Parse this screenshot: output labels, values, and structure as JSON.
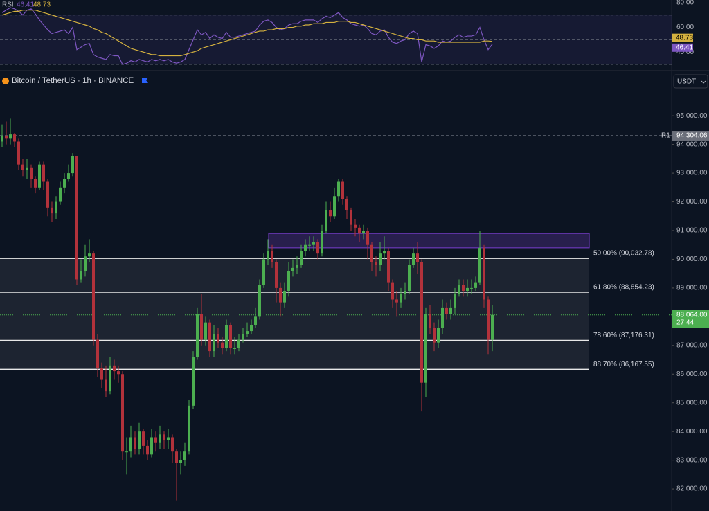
{
  "chart_data": [
    {
      "type": "candlestick",
      "title": "Bitcoin / TetherUS · 1h · BINANCE",
      "currency": "USDT",
      "up_color": "#4caf50",
      "down_color": "#b2323b",
      "open": [
        94100,
        94300,
        94200,
        94350,
        94100,
        93300,
        93100,
        93200,
        92800,
        92500,
        93300,
        92700,
        91800,
        91600,
        92000,
        92500,
        92800,
        93000,
        93600,
        89300,
        89600,
        90100,
        90200,
        87200,
        86200,
        85800,
        85400,
        86300,
        86100,
        86000,
        83300,
        83300,
        83800,
        83400,
        84000,
        83500,
        83200,
        83800,
        83600,
        83900,
        83700,
        83800,
        83300,
        82900,
        83000,
        83300,
        84900,
        86600,
        88100,
        87200,
        87800,
        86800,
        87400,
        87100,
        86900,
        87700,
        86900,
        86900,
        87200,
        87400,
        87500,
        87700,
        88000,
        89100,
        90000,
        90300,
        89900,
        89000,
        88500,
        88900,
        89600,
        89700,
        89800,
        90300,
        90500,
        90500,
        90600,
        90200,
        91000,
        91700,
        91500,
        92200,
        92700,
        92100,
        91700,
        91200,
        91100,
        90900,
        91000,
        90500,
        89900,
        89800,
        90200,
        90300,
        89200,
        88600,
        88500,
        88800,
        88900,
        89800,
        90200,
        89900,
        85700,
        88100,
        87600,
        87100,
        87600,
        88300,
        88100,
        88300,
        88800,
        89100,
        88900,
        89000,
        89000,
        89200,
        90400,
        88600,
        87200
      ],
      "high": [
        94700,
        94800,
        94900,
        94400,
        94200,
        93500,
        93500,
        93300,
        92900,
        93400,
        93400,
        92800,
        92000,
        92200,
        92700,
        93000,
        93300,
        93700,
        93600,
        90000,
        90500,
        90700,
        90300,
        87400,
        86400,
        86300,
        86600,
        86500,
        86300,
        86100,
        83800,
        84200,
        84000,
        84300,
        84100,
        83700,
        84100,
        84000,
        84200,
        84000,
        84100,
        83900,
        83400,
        83300,
        83600,
        85100,
        86800,
        88300,
        88800,
        88000,
        87900,
        87700,
        87600,
        87300,
        87900,
        87800,
        87300,
        87400,
        87600,
        87800,
        87900,
        88300,
        89300,
        90200,
        90700,
        90500,
        90000,
        89200,
        89200,
        89900,
        90000,
        90100,
        90500,
        90700,
        90800,
        90800,
        90700,
        91200,
        92000,
        92000,
        92500,
        92800,
        92800,
        92200,
        91800,
        91400,
        91200,
        91200,
        91100,
        90600,
        90100,
        90600,
        90800,
        90400,
        89300,
        88900,
        89000,
        89200,
        90000,
        90400,
        90600,
        90000,
        88300,
        88400,
        87800,
        87900,
        88600,
        88500,
        88600,
        89000,
        89300,
        89300,
        89300,
        89300,
        89400,
        91000,
        90500,
        88700,
        88400
      ],
      "low": [
        93900,
        94000,
        94000,
        93900,
        93100,
        92900,
        92800,
        92500,
        92300,
        92400,
        92400,
        91500,
        91300,
        91400,
        91900,
        92300,
        92700,
        92900,
        89100,
        89200,
        89400,
        89900,
        87000,
        85900,
        85500,
        85200,
        85300,
        85800,
        85700,
        83000,
        82500,
        83100,
        83200,
        83200,
        83200,
        83000,
        83100,
        83300,
        83400,
        83400,
        83400,
        82900,
        81600,
        82500,
        82800,
        83200,
        84800,
        86500,
        87000,
        87000,
        86600,
        86600,
        86900,
        86700,
        86800,
        86700,
        86700,
        86800,
        87100,
        87300,
        87400,
        87600,
        87900,
        89000,
        89800,
        89700,
        88500,
        88000,
        88300,
        88700,
        89400,
        89500,
        89700,
        90100,
        90300,
        90300,
        90000,
        90100,
        90900,
        91300,
        91400,
        92000,
        91900,
        91400,
        91000,
        90800,
        90600,
        90700,
        90000,
        89600,
        89400,
        89600,
        90000,
        88900,
        88300,
        88000,
        88300,
        88600,
        88800,
        89700,
        89500,
        84700,
        85200,
        87400,
        86800,
        86900,
        87400,
        87900,
        87900,
        88100,
        88700,
        88700,
        88700,
        88800,
        88900,
        89100,
        88300,
        86700,
        86800
      ],
      "close": [
        94300,
        94200,
        94350,
        94100,
        93300,
        93100,
        93200,
        92800,
        92500,
        93300,
        92700,
        91800,
        91600,
        92000,
        92500,
        92800,
        93000,
        93600,
        89300,
        89600,
        90100,
        90200,
        87200,
        86200,
        85800,
        85400,
        86300,
        86100,
        86000,
        83300,
        83300,
        83800,
        83400,
        84000,
        83500,
        83200,
        83800,
        83600,
        83900,
        83700,
        83800,
        83300,
        82900,
        83000,
        83300,
        84900,
        86600,
        88100,
        87200,
        87800,
        86800,
        87400,
        87100,
        86900,
        87700,
        86900,
        86900,
        87200,
        87400,
        87500,
        87700,
        88000,
        89100,
        90000,
        90300,
        89900,
        89000,
        88500,
        88900,
        89600,
        89700,
        89800,
        90300,
        90500,
        90500,
        90600,
        90200,
        91000,
        91700,
        91500,
        92200,
        92700,
        92100,
        91700,
        91200,
        91100,
        90900,
        91000,
        90500,
        89900,
        89800,
        90200,
        90300,
        89200,
        88600,
        88500,
        88800,
        88900,
        89800,
        90200,
        89900,
        85700,
        88100,
        87600,
        87100,
        87600,
        88300,
        88100,
        88300,
        88800,
        89100,
        88900,
        89000,
        89000,
        89200,
        90400,
        88600,
        87200,
        88064
      ],
      "ylim": [
        81230,
        96500
      ],
      "yticks": [
        {
          "value": 82000,
          "label": "82,000.00"
        },
        {
          "value": 83000,
          "label": "83,000.00"
        },
        {
          "value": 84000,
          "label": "84,000.00"
        },
        {
          "value": 85000,
          "label": "85,000.00"
        },
        {
          "value": 86000,
          "label": "86,000.00"
        },
        {
          "value": 87000,
          "label": "87,000.00"
        },
        {
          "value": 88000,
          "label": "88,000.00"
        },
        {
          "value": 89000,
          "label": "89,000.00"
        },
        {
          "value": 90000,
          "label": "90,000.00"
        },
        {
          "value": 91000,
          "label": "91,000.00"
        },
        {
          "value": 92000,
          "label": "92,000.00"
        },
        {
          "value": 93000,
          "label": "93,000.00"
        },
        {
          "value": 94000,
          "label": "94,000.00"
        },
        {
          "value": 95000,
          "label": "95,000.00"
        }
      ],
      "fib_levels": [
        {
          "value": 90032.78,
          "label": "50.00% (90,032.78)"
        },
        {
          "value": 88854.23,
          "label": "61.80% (88,854.23)"
        },
        {
          "value": 87176.31,
          "label": "78.60% (87,176.31)"
        },
        {
          "value": 86167.55,
          "label": "88.70% (86,167.55)"
        }
      ],
      "zone": [
        90400,
        90900
      ],
      "zone_color": "#7b3fd0",
      "resistance": {
        "name": "R1",
        "value": 94304.06,
        "label": "94,304.06"
      },
      "price_tag": {
        "value": 88064.0,
        "label": "88,064.00",
        "countdown": "27:44"
      }
    },
    {
      "type": "line",
      "title": "RSI",
      "series": [
        {
          "color": "#7e57c2",
          "values": [
            72,
            74,
            76,
            75,
            73,
            70,
            74,
            75,
            71,
            66,
            62,
            58,
            55,
            56,
            57,
            58,
            55,
            60,
            42,
            44,
            46,
            47,
            38,
            36,
            35,
            34,
            38,
            37,
            37,
            30,
            31,
            33,
            32,
            34,
            33,
            32,
            34,
            33,
            34,
            33,
            34,
            32,
            31,
            32,
            34,
            42,
            50,
            58,
            54,
            56,
            51,
            54,
            52,
            51,
            56,
            52,
            52,
            53,
            54,
            55,
            56,
            57,
            62,
            65,
            66,
            64,
            60,
            58,
            59,
            62,
            63,
            63,
            65,
            66,
            66,
            66,
            64,
            67,
            69,
            68,
            70,
            72,
            68,
            66,
            63,
            62,
            61,
            62,
            59,
            55,
            54,
            57,
            58,
            52,
            48,
            47,
            49,
            50,
            55,
            57,
            55,
            32,
            46,
            45,
            43,
            45,
            49,
            48,
            49,
            52,
            54,
            52,
            53,
            53,
            54,
            60,
            50,
            42,
            46.41
          ]
        },
        {
          "color": "#d4b13f",
          "values": [
            70,
            71,
            72,
            73,
            73,
            74,
            74,
            74,
            74,
            73,
            72,
            71,
            70,
            69,
            68,
            67,
            66,
            65,
            64,
            63,
            62,
            61,
            59,
            58,
            56,
            55,
            53,
            51,
            49,
            47,
            45,
            43,
            42,
            41,
            40,
            39,
            38,
            38,
            37,
            37,
            37,
            37,
            37,
            37,
            38,
            39,
            40,
            41,
            43,
            44,
            45,
            46,
            47,
            48,
            49,
            50,
            51,
            52,
            53,
            54,
            55,
            56,
            57,
            57,
            58,
            58,
            59,
            59,
            59,
            60,
            60,
            61,
            61,
            62,
            62,
            63,
            63,
            63,
            64,
            64,
            64,
            65,
            65,
            65,
            64,
            64,
            63,
            62,
            61,
            60,
            59,
            58,
            57,
            56,
            55,
            54,
            53,
            52,
            51,
            51,
            50,
            50,
            49,
            49,
            49,
            48,
            48,
            48,
            48,
            48,
            48,
            48,
            48,
            48,
            48,
            48,
            49,
            49,
            48.73
          ]
        }
      ],
      "ylim": [
        26.1,
        82.2
      ],
      "yticks": [
        {
          "value": 40,
          "label": "40.00"
        },
        {
          "value": 60,
          "label": "60.00"
        },
        {
          "value": 80,
          "label": "80.00"
        }
      ],
      "levels": [
        30,
        50,
        70
      ]
    }
  ]
}
